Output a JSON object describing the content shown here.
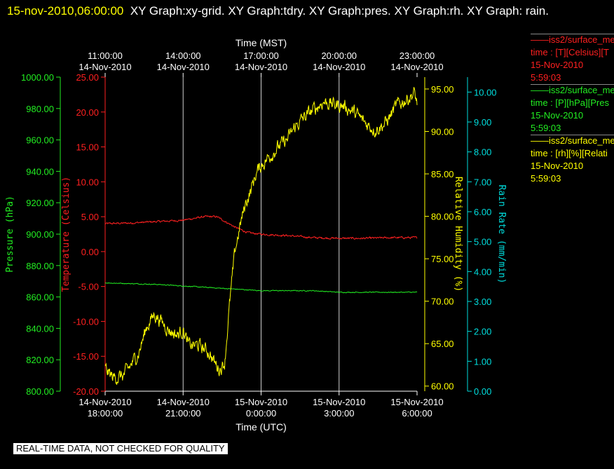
{
  "header": {
    "timestamp": "15-nov-2010,06:00:00",
    "graphs": "XY Graph:xy-grid.  XY Graph:tdry.  XY Graph:pres.  XY Graph:rh.  XY Graph: rain."
  },
  "footer": {
    "label": "REAL-TIME DATA, NOT CHECKED FOR QUALITY"
  },
  "legend": [
    {
      "line1": "iss2/surface_me",
      "line2": "time : [T][Celsius][T",
      "date": "15-Nov-2010",
      "time": "5:59:03",
      "color": "#ff2020"
    },
    {
      "line1": "iss2/surface_me",
      "line2": "time : [P][hPa][Pres",
      "date": "15-Nov-2010",
      "time": "5:59:03",
      "color": "#22ee22"
    },
    {
      "line1": "iss2/surface_me",
      "line2": "time : [rh][%][Relati",
      "date": "15-Nov-2010",
      "time": "5:59:03",
      "color": "#ffff00"
    }
  ],
  "chart_data": {
    "type": "line",
    "top_axis": {
      "label": "Time (MST)",
      "ticks": [
        {
          "t": 0,
          "time": "11:00:00",
          "date": "14-Nov-2010"
        },
        {
          "t": 3,
          "time": "14:00:00",
          "date": "14-Nov-2010"
        },
        {
          "t": 6,
          "time": "17:00:00",
          "date": "14-Nov-2010"
        },
        {
          "t": 9,
          "time": "20:00:00",
          "date": "14-Nov-2010"
        },
        {
          "t": 12,
          "time": "23:00:00",
          "date": "14-Nov-2010"
        }
      ]
    },
    "bottom_axis": {
      "label": "Time (UTC)",
      "range": [
        "14-Nov-2010 18:00:00",
        "15-Nov-2010 6:00:00"
      ],
      "ticks": [
        {
          "t": 0,
          "date": "14-Nov-2010",
          "time": "18:00:00"
        },
        {
          "t": 3,
          "date": "14-Nov-2010",
          "time": "21:00:00"
        },
        {
          "t": 6,
          "date": "15-Nov-2010",
          "time": "0:00:00"
        },
        {
          "t": 9,
          "date": "15-Nov-2010",
          "time": "3:00:00"
        },
        {
          "t": 12,
          "date": "15-Nov-2010",
          "time": "6:00:00"
        }
      ]
    },
    "y_axes": [
      {
        "id": "pres",
        "label": "Pressure (hPa)",
        "color": "#22ee22",
        "range": [
          800,
          1000
        ],
        "ticks": [
          "800.00",
          "820.00",
          "840.00",
          "860.00",
          "880.00",
          "900.00",
          "920.00",
          "940.00",
          "960.00",
          "980.00",
          "1000.00"
        ]
      },
      {
        "id": "temp",
        "label": "Temperature (Celsius)",
        "color": "#ff2020",
        "range": [
          -20,
          25
        ],
        "ticks": [
          "-20.00",
          "-15.00",
          "-10.00",
          "-5.00",
          "0.00",
          "5.00",
          "10.00",
          "15.00",
          "20.00",
          "25.00"
        ]
      },
      {
        "id": "rh",
        "label": "Relative Humidity (%)",
        "color": "#ffff00",
        "range": [
          59.4,
          96.4
        ],
        "ticks": [
          "60.00",
          "65.00",
          "70.00",
          "75.00",
          "80.00",
          "85.00",
          "90.00",
          "95.00"
        ]
      },
      {
        "id": "rain",
        "label": "Rain Rate (mm/min)",
        "color": "#00dddd",
        "range": [
          0,
          10.5
        ],
        "ticks": [
          "0.00",
          "1.00",
          "2.00",
          "3.00",
          "4.00",
          "5.00",
          "6.00",
          "7.00",
          "8.00",
          "9.00",
          "10.00"
        ]
      }
    ],
    "grid": "vertical",
    "series": [
      {
        "axis": "temp",
        "color": "#ff2020",
        "noise": 0.15,
        "points": [
          [
            0,
            4.0
          ],
          [
            1,
            4.1
          ],
          [
            2,
            4.3
          ],
          [
            3,
            4.5
          ],
          [
            3.8,
            5.0
          ],
          [
            4.3,
            5.0
          ],
          [
            5,
            3.5
          ],
          [
            5.5,
            2.7
          ],
          [
            6,
            2.5
          ],
          [
            7,
            2.3
          ],
          [
            8,
            2.0
          ],
          [
            9,
            1.9
          ],
          [
            10,
            1.9
          ],
          [
            11,
            2.0
          ],
          [
            12,
            2.0
          ]
        ]
      },
      {
        "axis": "pres",
        "color": "#22ee22",
        "noise": 0.3,
        "points": [
          [
            0,
            869
          ],
          [
            2,
            868
          ],
          [
            4,
            866
          ],
          [
            6,
            864
          ],
          [
            8,
            864
          ],
          [
            9,
            863
          ],
          [
            10,
            863
          ],
          [
            12,
            863
          ]
        ]
      },
      {
        "axis": "rh",
        "color": "#ffff00",
        "noise": 0.9,
        "points": [
          [
            0,
            62
          ],
          [
            0.3,
            61
          ],
          [
            0.7,
            61.2
          ],
          [
            1,
            62.5
          ],
          [
            1.3,
            64
          ],
          [
            1.6,
            67
          ],
          [
            1.9,
            68.5
          ],
          [
            2.2,
            67.5
          ],
          [
            2.5,
            66.5
          ],
          [
            2.8,
            66
          ],
          [
            3.0,
            66.7
          ],
          [
            3.2,
            64.8
          ],
          [
            3.6,
            64.8
          ],
          [
            4.0,
            64
          ],
          [
            4.2,
            62.8
          ],
          [
            4.4,
            62
          ],
          [
            4.6,
            62.8
          ],
          [
            4.8,
            70
          ],
          [
            5.0,
            76
          ],
          [
            5.2,
            79
          ],
          [
            5.4,
            81.5
          ],
          [
            5.6,
            83
          ],
          [
            5.8,
            85
          ],
          [
            6.0,
            86
          ],
          [
            6.3,
            87
          ],
          [
            6.6,
            88
          ],
          [
            7.0,
            89
          ],
          [
            7.3,
            90.5
          ],
          [
            7.6,
            91.5
          ],
          [
            8.0,
            92.5
          ],
          [
            8.4,
            93.5
          ],
          [
            8.8,
            93.2
          ],
          [
            9.2,
            93.0
          ],
          [
            9.6,
            92.2
          ],
          [
            10.0,
            91.0
          ],
          [
            10.4,
            90.2
          ],
          [
            10.8,
            91
          ],
          [
            11.2,
            93
          ],
          [
            11.6,
            93.8
          ],
          [
            11.9,
            94.5
          ],
          [
            12.0,
            93.3
          ]
        ]
      }
    ]
  }
}
